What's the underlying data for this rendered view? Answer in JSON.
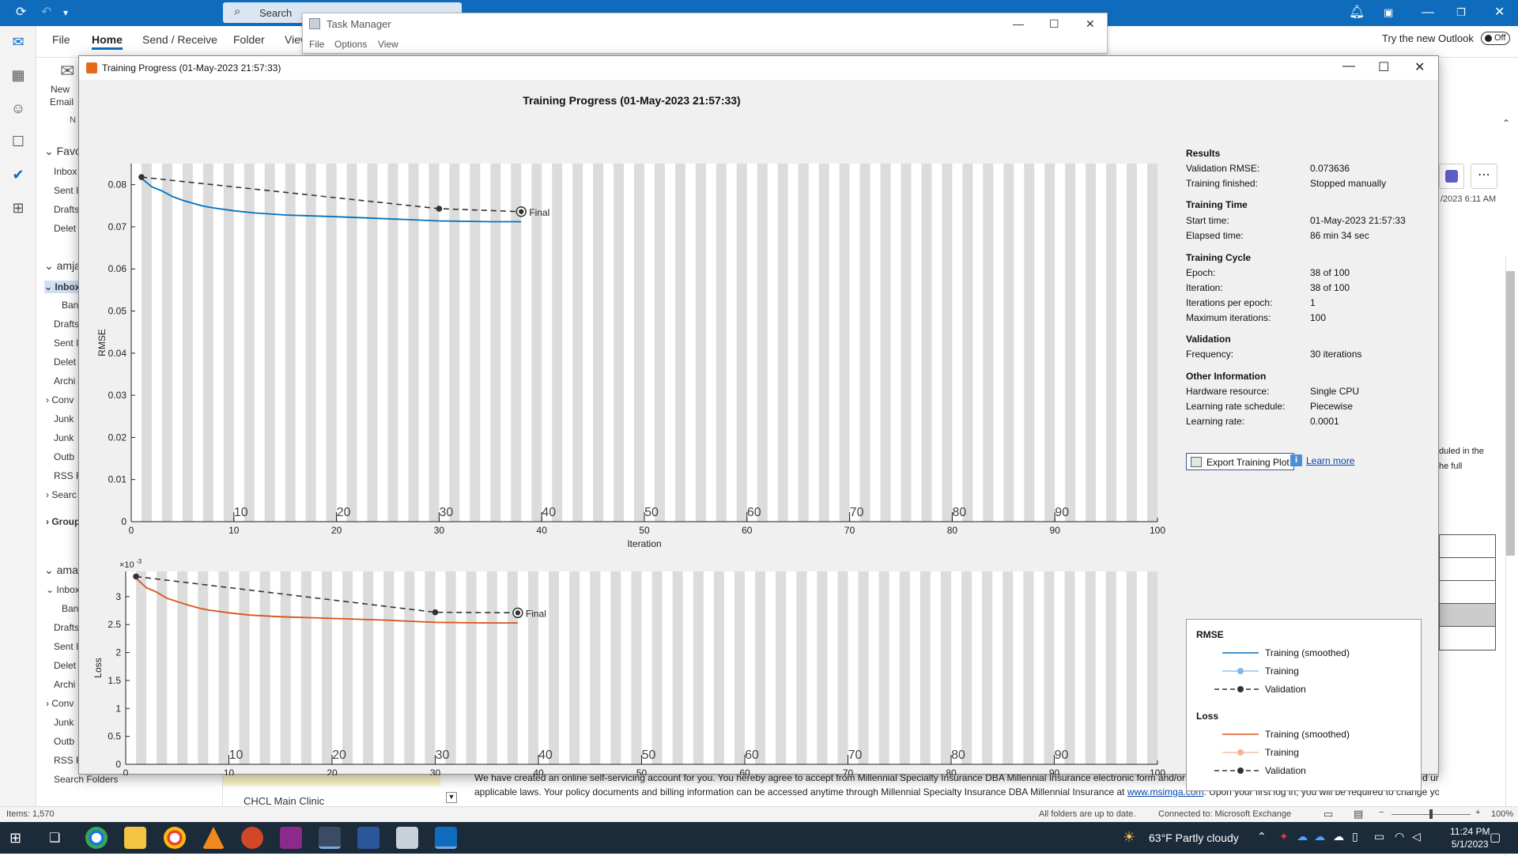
{
  "outlook": {
    "search_label": "Search",
    "ribbon_tabs": [
      "File",
      "Home",
      "Send / Receive",
      "Folder",
      "View"
    ],
    "new_email": [
      "New",
      "Email"
    ],
    "new_group_label": "N",
    "try_new_outlook": "Try the new Outlook",
    "toggle": "Off",
    "folder_pane": {
      "favorites_header": "Favo",
      "favorites": [
        "Inbox",
        "Sent I",
        "Drafts",
        "Delet"
      ],
      "account1_header": "amja",
      "account1_inbox": "Inbox",
      "account1_items": [
        "Ban",
        "Drafts",
        "Sent I",
        "Delet",
        "Archi",
        "Conv",
        "Junk",
        "Junk",
        "Outb",
        "RSS F",
        "Searc"
      ],
      "groups": "Group",
      "account2_header": "ama",
      "account2_inbox": "Inbox",
      "account2_items": [
        "Ban",
        "Drafts",
        "Sent I",
        "Delet",
        "Archi",
        "Conv",
        "Junk",
        "Outb",
        "RSS F"
      ],
      "search_folders": "Search Folders"
    },
    "message_list_visible": "CHCL Main Clinic",
    "reading": {
      "date": "/2023 6:11 AM",
      "snippet1": "duled in the",
      "snippet2": "he full",
      "body_line1": "We have created an online self-servicing account for you.  You hereby agree to accept from Millennial Specialty Insurance DBA Millennial Insurance electronic form and/or delivery of insurance transaction documents as permitted under",
      "body_line2a": "applicable laws. Your policy documents and billing information can be accessed anytime through Millennial Specialty Insurance DBA Millennial Insurance at",
      "body_link": "www.msimga.com",
      "body_line2b": ". Upon your first log in, you will be required to change your"
    },
    "status": {
      "items": "Items: 1,570",
      "uptodate": "All folders are up to date.",
      "connected": "Connected to: Microsoft Exchange",
      "zoom": "100%"
    }
  },
  "task_manager": {
    "title": "Task Manager",
    "menu": [
      "File",
      "Options",
      "View"
    ]
  },
  "training_window": {
    "title": "Training Progress (01-May-2023 21:57:33)",
    "plot_title": "Training Progress (01-May-2023 21:57:33)",
    "final_label": "Final"
  },
  "chart_data": [
    {
      "type": "line",
      "ylabel": "RMSE",
      "xlabel": "Iteration",
      "xlim": [
        0,
        100
      ],
      "ylim": [
        0,
        0.085
      ],
      "xticks": [
        0,
        10,
        20,
        30,
        40,
        50,
        60,
        70,
        80,
        90,
        100
      ],
      "yticks": [
        0,
        0.01,
        0.02,
        0.03,
        0.04,
        0.05,
        0.06,
        0.07,
        0.08
      ],
      "ytick_labels": [
        "0",
        "0.01",
        "0.02",
        "0.03",
        "0.04",
        "0.05",
        "0.06",
        "0.07",
        "0.08"
      ],
      "epoch_labels": [
        "10",
        "20",
        "30",
        "40",
        "50",
        "60",
        "70",
        "80",
        "90"
      ],
      "series": [
        {
          "name": "Training (smoothed)",
          "color": "#0072bd",
          "x": [
            1,
            2,
            3,
            4,
            5,
            6,
            7,
            8,
            10,
            12,
            15,
            20,
            25,
            30,
            35,
            38
          ],
          "y": [
            0.0815,
            0.0795,
            0.0785,
            0.0772,
            0.0763,
            0.0756,
            0.0749,
            0.0745,
            0.0738,
            0.0733,
            0.0728,
            0.0724,
            0.0719,
            0.0714,
            0.0712,
            0.0712
          ]
        },
        {
          "name": "Validation",
          "color": "#333333",
          "x": [
            1,
            30,
            38
          ],
          "y": [
            0.0818,
            0.0743,
            0.0736
          ]
        }
      ],
      "final": {
        "x": 38,
        "y": 0.0736
      }
    },
    {
      "type": "line",
      "ylabel": "Loss",
      "xlabel": "Iteration",
      "xlim": [
        0,
        100
      ],
      "ylim": [
        0,
        0.00345
      ],
      "xticks": [
        0,
        10,
        20,
        30,
        40,
        50,
        60,
        70,
        80,
        90,
        100
      ],
      "yticks": [
        0,
        0.0005,
        0.001,
        0.0015,
        0.002,
        0.0025,
        0.003
      ],
      "ytick_labels": [
        "0",
        "0.5",
        "1",
        "1.5",
        "2",
        "2.5",
        "3"
      ],
      "y_multiplier": "×10",
      "y_exponent": "-3",
      "epoch_labels": [
        "10",
        "20",
        "30",
        "40",
        "50",
        "60",
        "70",
        "80",
        "90"
      ],
      "series": [
        {
          "name": "Training (smoothed)",
          "color": "#d95319",
          "x": [
            1,
            2,
            3,
            4,
            5,
            6,
            7,
            8,
            10,
            12,
            15,
            20,
            25,
            30,
            35,
            38
          ],
          "y": [
            0.00333,
            0.00316,
            0.00308,
            0.00297,
            0.00291,
            0.00285,
            0.0028,
            0.00276,
            0.00271,
            0.00267,
            0.00264,
            0.00261,
            0.00258,
            0.00254,
            0.00253,
            0.00253
          ]
        },
        {
          "name": "Validation",
          "color": "#333333",
          "x": [
            1,
            30,
            38
          ],
          "y": [
            0.00336,
            0.00272,
            0.00271
          ]
        }
      ],
      "final": {
        "x": 38,
        "y": 0.00271
      }
    }
  ],
  "results_panel": {
    "sections": [
      {
        "heading": "Results",
        "rows": [
          [
            "Validation RMSE:",
            "0.073636"
          ],
          [
            "Training finished:",
            "Stopped manually"
          ]
        ]
      },
      {
        "heading": "Training Time",
        "rows": [
          [
            "Start time:",
            "01-May-2023 21:57:33"
          ],
          [
            "Elapsed time:",
            "86 min 34 sec"
          ]
        ]
      },
      {
        "heading": "Training Cycle",
        "rows": [
          [
            "Epoch:",
            "38 of 100"
          ],
          [
            "Iteration:",
            "38 of 100"
          ],
          [
            "Iterations per epoch:",
            "1"
          ],
          [
            "Maximum iterations:",
            "100"
          ]
        ]
      },
      {
        "heading": "Validation",
        "rows": [
          [
            "Frequency:",
            "30 iterations"
          ]
        ]
      },
      {
        "heading": "Other Information",
        "rows": [
          [
            "Hardware resource:",
            "Single CPU"
          ],
          [
            "Learning rate schedule:",
            "Piecewise"
          ],
          [
            "Learning rate:",
            "0.0001"
          ]
        ]
      }
    ],
    "export_button": "Export Training Plot",
    "learn_more": "Learn more"
  },
  "legend": {
    "rmse_heading": "RMSE",
    "loss_heading": "Loss",
    "entries": [
      "Training (smoothed)",
      "Training",
      "Validation"
    ],
    "rmse_colors": [
      "#0072bd",
      "#7fb8e6",
      "#333333"
    ],
    "loss_colors": [
      "#d95319",
      "#f0b498",
      "#333333"
    ]
  },
  "taskbar": {
    "weather": "63°F  Partly cloudy",
    "time": "11:24 PM",
    "date": "5/1/2023"
  }
}
